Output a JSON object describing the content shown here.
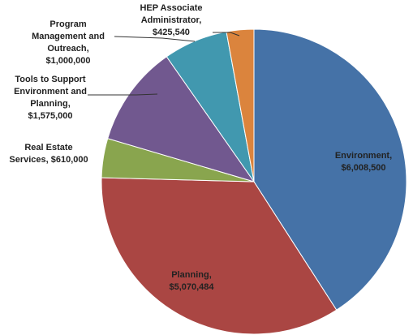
{
  "chart_data": {
    "type": "pie",
    "title": "",
    "categories": [
      "Environment",
      "Planning",
      "Real Estate Services",
      "Tools to Support Environment and Planning",
      "Program Management and Outreach",
      "HEP Associate Administrator"
    ],
    "values": [
      6008500,
      5070484,
      610000,
      1575000,
      1000000,
      425540
    ],
    "colors": [
      "#4572A7",
      "#AA4643",
      "#89A54E",
      "#71588F",
      "#4198AF",
      "#DB843D"
    ],
    "data_labels": [
      [
        "Environment,",
        "$6,008,500"
      ],
      [
        "Planning,",
        "$5,070,484"
      ],
      [
        "Real Estate",
        "Services, $610,000"
      ],
      [
        "Tools to Support",
        "Environment and",
        "Planning,",
        "$1,575,000"
      ],
      [
        "Program",
        "Management and",
        "Outreach,",
        "$1,000,000"
      ],
      [
        "HEP Associate",
        "Administrator,",
        "$425,540"
      ]
    ],
    "start_angle_deg": 0,
    "direction": "clockwise",
    "legend": "none"
  }
}
